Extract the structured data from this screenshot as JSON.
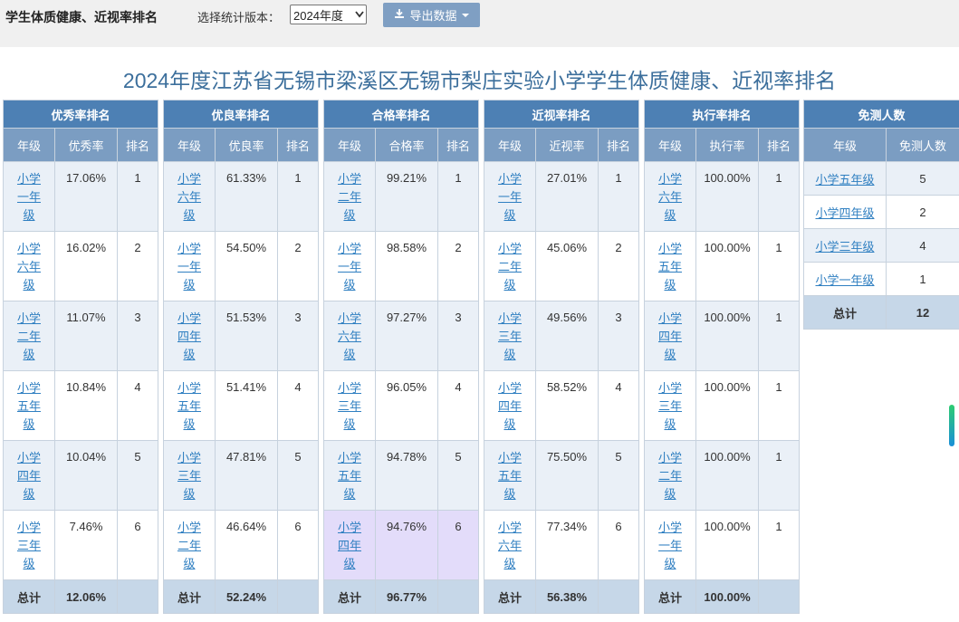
{
  "header": {
    "title": "学生体质健康、近视率排名",
    "version_label": "选择统计版本：",
    "version_selected": "2024年度",
    "export_label": "导出数据"
  },
  "report_title": "2024年度江苏省无锡市梁溪区无锡市梨庄实验小学学生体质健康、近视率排名",
  "tables": [
    {
      "title": "优秀率排名",
      "headers": [
        "年级",
        "优秀率",
        "排名"
      ],
      "rows": [
        {
          "grade": "小学一年级",
          "value": "17.06%",
          "rank": "1"
        },
        {
          "grade": "小学六年级",
          "value": "16.02%",
          "rank": "2"
        },
        {
          "grade": "小学二年级",
          "value": "11.07%",
          "rank": "3"
        },
        {
          "grade": "小学五年级",
          "value": "10.84%",
          "rank": "4"
        },
        {
          "grade": "小学四年级",
          "value": "10.04%",
          "rank": "5"
        },
        {
          "grade": "小学三年级",
          "value": "7.46%",
          "rank": "6"
        }
      ],
      "total_label": "总计",
      "total_value": "12.06%"
    },
    {
      "title": "优良率排名",
      "headers": [
        "年级",
        "优良率",
        "排名"
      ],
      "rows": [
        {
          "grade": "小学六年级",
          "value": "61.33%",
          "rank": "1"
        },
        {
          "grade": "小学一年级",
          "value": "54.50%",
          "rank": "2"
        },
        {
          "grade": "小学四年级",
          "value": "51.53%",
          "rank": "3"
        },
        {
          "grade": "小学五年级",
          "value": "51.41%",
          "rank": "4"
        },
        {
          "grade": "小学三年级",
          "value": "47.81%",
          "rank": "5"
        },
        {
          "grade": "小学二年级",
          "value": "46.64%",
          "rank": "6"
        }
      ],
      "total_label": "总计",
      "total_value": "52.24%"
    },
    {
      "title": "合格率排名",
      "headers": [
        "年级",
        "合格率",
        "排名"
      ],
      "rows": [
        {
          "grade": "小学二年级",
          "value": "99.21%",
          "rank": "1"
        },
        {
          "grade": "小学一年级",
          "value": "98.58%",
          "rank": "2"
        },
        {
          "grade": "小学六年级",
          "value": "97.27%",
          "rank": "3"
        },
        {
          "grade": "小学三年级",
          "value": "96.05%",
          "rank": "4"
        },
        {
          "grade": "小学五年级",
          "value": "94.78%",
          "rank": "5"
        },
        {
          "grade": "小学四年级",
          "value": "94.76%",
          "rank": "6"
        }
      ],
      "total_label": "总计",
      "total_value": "96.77%"
    },
    {
      "title": "近视率排名",
      "headers": [
        "年级",
        "近视率",
        "排名"
      ],
      "rows": [
        {
          "grade": "小学一年级",
          "value": "27.01%",
          "rank": "1"
        },
        {
          "grade": "小学二年级",
          "value": "45.06%",
          "rank": "2"
        },
        {
          "grade": "小学三年级",
          "value": "49.56%",
          "rank": "3"
        },
        {
          "grade": "小学四年级",
          "value": "58.52%",
          "rank": "4"
        },
        {
          "grade": "小学五年级",
          "value": "75.50%",
          "rank": "5"
        },
        {
          "grade": "小学六年级",
          "value": "77.34%",
          "rank": "6"
        }
      ],
      "total_label": "总计",
      "total_value": "56.38%"
    },
    {
      "title": "执行率排名",
      "headers": [
        "年级",
        "执行率",
        "排名"
      ],
      "rows": [
        {
          "grade": "小学六年级",
          "value": "100.00%",
          "rank": "1"
        },
        {
          "grade": "小学五年级",
          "value": "100.00%",
          "rank": "1"
        },
        {
          "grade": "小学四年级",
          "value": "100.00%",
          "rank": "1"
        },
        {
          "grade": "小学三年级",
          "value": "100.00%",
          "rank": "1"
        },
        {
          "grade": "小学二年级",
          "value": "100.00%",
          "rank": "1"
        },
        {
          "grade": "小学一年级",
          "value": "100.00%",
          "rank": "1"
        }
      ],
      "total_label": "总计",
      "total_value": "100.00%"
    }
  ],
  "exempt": {
    "title": "免测人数",
    "headers": [
      "年级",
      "免测人数"
    ],
    "rows": [
      {
        "grade": "小学五年级",
        "count": "5"
      },
      {
        "grade": "小学四年级",
        "count": "2"
      },
      {
        "grade": "小学三年级",
        "count": "4"
      },
      {
        "grade": "小学一年级",
        "count": "1"
      }
    ],
    "total_label": "总计",
    "total_count": "12"
  },
  "icons": {
    "export": "download-icon",
    "select": "chevron-down-icon"
  }
}
